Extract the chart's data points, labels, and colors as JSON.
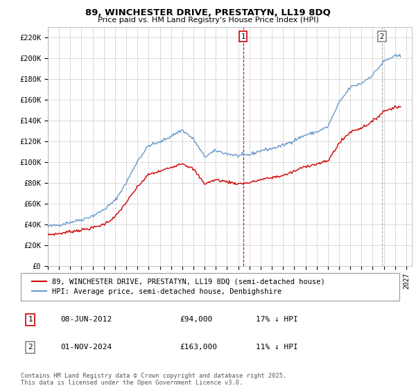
{
  "title": "89, WINCHESTER DRIVE, PRESTATYN, LL19 8DQ",
  "subtitle": "Price paid vs. HM Land Registry's House Price Index (HPI)",
  "ylim": [
    0,
    230000
  ],
  "yticks": [
    0,
    20000,
    40000,
    60000,
    80000,
    100000,
    120000,
    140000,
    160000,
    180000,
    200000,
    220000
  ],
  "ytick_labels": [
    "£0",
    "£20K",
    "£40K",
    "£60K",
    "£80K",
    "£100K",
    "£120K",
    "£140K",
    "£160K",
    "£180K",
    "£200K",
    "£220K"
  ],
  "xtick_years": [
    1995,
    1996,
    1997,
    1998,
    1999,
    2000,
    2001,
    2002,
    2003,
    2004,
    2005,
    2006,
    2007,
    2008,
    2009,
    2010,
    2011,
    2012,
    2013,
    2014,
    2015,
    2016,
    2017,
    2018,
    2019,
    2020,
    2021,
    2022,
    2023,
    2024,
    2025,
    2026,
    2027
  ],
  "red_line_color": "#cc0000",
  "blue_line_color": "#6699cc",
  "transaction1_date": 2012.44,
  "transaction1_price": 94000,
  "transaction2_date": 2024.83,
  "transaction2_price": 163000,
  "legend_entries": [
    "89, WINCHESTER DRIVE, PRESTATYN, LL19 8DQ (semi-detached house)",
    "HPI: Average price, semi-detached house, Denbighshire"
  ],
  "annotation1": [
    "1",
    "08-JUN-2012",
    "£94,000",
    "17% ↓ HPI"
  ],
  "annotation2": [
    "2",
    "01-NOV-2024",
    "£163,000",
    "11% ↓ HPI"
  ],
  "footer": "Contains HM Land Registry data © Crown copyright and database right 2025.\nThis data is licensed under the Open Government Licence v3.0.",
  "background_color": "#ffffff",
  "grid_color": "#cccccc",
  "hpi_blue_keypoints": [
    [
      1995.0,
      38000
    ],
    [
      1996.0,
      39500
    ],
    [
      1997.0,
      42000
    ],
    [
      1998.0,
      44500
    ],
    [
      1999.0,
      48000
    ],
    [
      2000.0,
      54000
    ],
    [
      2001.0,
      63000
    ],
    [
      2002.0,
      80000
    ],
    [
      2003.0,
      101000
    ],
    [
      2004.0,
      116000
    ],
    [
      2005.0,
      119000
    ],
    [
      2006.0,
      125000
    ],
    [
      2007.0,
      131000
    ],
    [
      2008.0,
      122000
    ],
    [
      2009.0,
      105000
    ],
    [
      2010.0,
      111000
    ],
    [
      2011.0,
      108000
    ],
    [
      2012.0,
      106000
    ],
    [
      2013.0,
      107000
    ],
    [
      2014.0,
      111000
    ],
    [
      2015.0,
      113000
    ],
    [
      2016.0,
      116000
    ],
    [
      2017.0,
      121000
    ],
    [
      2018.0,
      126000
    ],
    [
      2019.0,
      129000
    ],
    [
      2020.0,
      134000
    ],
    [
      2021.0,
      157000
    ],
    [
      2022.0,
      172000
    ],
    [
      2023.0,
      176000
    ],
    [
      2024.0,
      184000
    ],
    [
      2025.0,
      197000
    ],
    [
      2026.0,
      202000
    ]
  ],
  "red_keypoints": [
    [
      1995.0,
      30000
    ],
    [
      1996.0,
      31000
    ],
    [
      1997.0,
      33000
    ],
    [
      1998.0,
      34500
    ],
    [
      1999.0,
      36500
    ],
    [
      2000.0,
      40000
    ],
    [
      2001.0,
      47000
    ],
    [
      2002.0,
      61000
    ],
    [
      2003.0,
      76000
    ],
    [
      2004.0,
      88000
    ],
    [
      2005.0,
      91000
    ],
    [
      2006.0,
      95000
    ],
    [
      2007.0,
      99000
    ],
    [
      2008.0,
      93000
    ],
    [
      2009.0,
      79000
    ],
    [
      2010.0,
      83000
    ],
    [
      2011.0,
      81000
    ],
    [
      2012.0,
      79000
    ],
    [
      2013.0,
      80000
    ],
    [
      2014.0,
      83000
    ],
    [
      2015.0,
      85000
    ],
    [
      2016.0,
      87000
    ],
    [
      2017.0,
      91000
    ],
    [
      2018.0,
      96000
    ],
    [
      2019.0,
      98000
    ],
    [
      2020.0,
      101000
    ],
    [
      2021.0,
      118000
    ],
    [
      2022.0,
      129000
    ],
    [
      2023.0,
      133000
    ],
    [
      2024.0,
      139000
    ],
    [
      2025.0,
      149000
    ],
    [
      2026.0,
      153000
    ]
  ]
}
